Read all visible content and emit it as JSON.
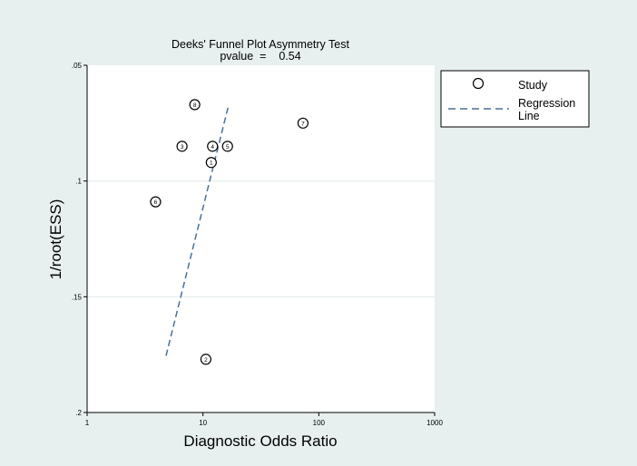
{
  "chart_data": {
    "type": "scatter",
    "title": "Deeks' Funnel Plot Asymmetry Test",
    "subtitle": "pvalue  =    0.54",
    "xlabel": "Diagnostic Odds Ratio",
    "ylabel": "1/root(ESS)",
    "x_scale": "log",
    "xlim": [
      1,
      1000
    ],
    "x_ticks": [
      1,
      10,
      100,
      1000
    ],
    "x_tick_labels": [
      "1",
      "10",
      "100",
      "1000"
    ],
    "y_reversed": true,
    "ylim": [
      0.05,
      0.2
    ],
    "y_ticks": [
      0.05,
      0.1,
      0.15,
      0.2
    ],
    "y_tick_labels": [
      ".05",
      ".1",
      ".15",
      ".2"
    ],
    "grid": true,
    "legend_position": "right",
    "series": [
      {
        "name": "Study",
        "marker": "hollow-circle",
        "points": [
          {
            "label": "1",
            "x": 11.8,
            "y": 0.092
          },
          {
            "label": "2",
            "x": 10.6,
            "y": 0.177
          },
          {
            "label": "3",
            "x": 6.6,
            "y": 0.085
          },
          {
            "label": "4",
            "x": 12.1,
            "y": 0.085
          },
          {
            "label": "5",
            "x": 16.3,
            "y": 0.085
          },
          {
            "label": "6",
            "x": 3.9,
            "y": 0.109
          },
          {
            "label": "7",
            "x": 73,
            "y": 0.075
          },
          {
            "label": "8",
            "x": 8.5,
            "y": 0.067
          }
        ]
      },
      {
        "name": "Regression\nLine",
        "line_style": "dashed",
        "color": "#4a6f9a",
        "points": [
          {
            "x": 4.8,
            "y": 0.1755
          },
          {
            "x": 16.5,
            "y": 0.068
          }
        ]
      }
    ],
    "legend": {
      "study_label": "Study",
      "regression_label_line1": "Regression",
      "regression_label_line2": "Line"
    }
  }
}
